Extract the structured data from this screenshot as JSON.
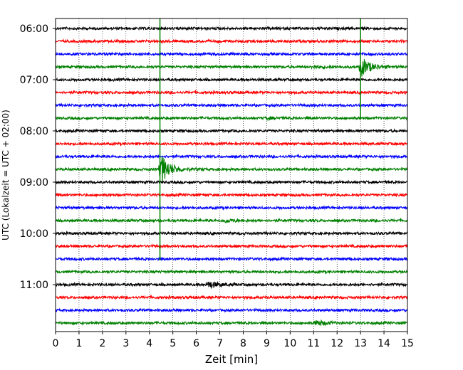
{
  "chart_data": {
    "type": "line",
    "title": "",
    "xlabel": "Zeit  [min]",
    "ylabel": "UTC (Lokalzeit = UTC + 02:00)",
    "xlim": [
      0,
      15
    ],
    "x_ticks": [
      "0",
      "1",
      "2",
      "3",
      "4",
      "5",
      "6",
      "7",
      "8",
      "9",
      "10",
      "11",
      "12",
      "13",
      "14",
      "15"
    ],
    "y_ticks": [
      "06:00",
      "07:00",
      "08:00",
      "09:00",
      "10:00",
      "11:00"
    ],
    "grid": "vertical dotted",
    "trace_colors": [
      "#000000",
      "#ff0000",
      "#0000ff",
      "#008000"
    ],
    "trace_rows": [
      "06:00",
      "06:15",
      "06:30",
      "06:45",
      "07:00",
      "07:15",
      "07:30",
      "07:45",
      "08:00",
      "08:15",
      "08:30",
      "08:45",
      "09:00",
      "09:15",
      "09:30",
      "09:45",
      "10:00",
      "10:15",
      "10:30",
      "10:45",
      "11:00",
      "11:15",
      "11:30",
      "11:45"
    ],
    "events": [
      {
        "row": "06:45",
        "minute": 11.0,
        "amplitude": 0.3
      },
      {
        "row": "06:45",
        "minute": 13.05,
        "amplitude": 2.2
      },
      {
        "row": "07:45",
        "minute": 9.0,
        "amplitude": 0.2
      },
      {
        "row": "08:45",
        "minute": 4.5,
        "amplitude": 3.5
      },
      {
        "row": "09:45",
        "minute": 7.2,
        "amplitude": 0.35
      },
      {
        "row": "11:00",
        "minute": 6.5,
        "amplitude": 0.9
      },
      {
        "row": "11:45",
        "minute": 11.1,
        "amplitude": 0.7
      }
    ],
    "spikes": [
      {
        "from_row": "06:00",
        "to_row": "10:30",
        "minute": 4.45,
        "color": "#008000"
      },
      {
        "from_row": "06:00",
        "to_row": "07:45",
        "minute": 13.0,
        "color": "#008000"
      }
    ]
  }
}
